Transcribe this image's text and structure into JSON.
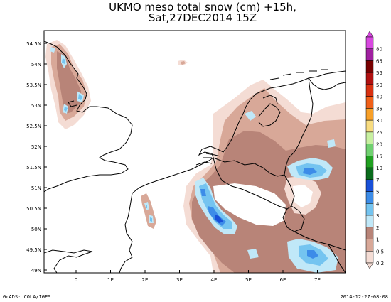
{
  "title": {
    "line1": "UKMO meso total snow (cm) +15h,",
    "line2": "Sat,27DEC2014 15Z"
  },
  "map": {
    "lat_labels": [
      "54.5N",
      "54N",
      "53.5N",
      "53N",
      "52.5N",
      "52N",
      "51.5N",
      "51N",
      "50.5N",
      "50N",
      "49.5N",
      "49N"
    ],
    "lon_labels": [
      "0",
      "1E",
      "2E",
      "3E",
      "4E",
      "5E",
      "6E",
      "7E"
    ],
    "snow_regions": "light-to-heavy snowfall over eastern England (Yorkshire, Lincolnshire), Channel coast near Boulogne, Belgian Ardennes, Luxembourg, Germany (Eifel, Sauerland, Hesse), northern Netherlands and NE France"
  },
  "colorbar": {
    "levels": [
      {
        "label": "80",
        "color": "#d848e0"
      },
      {
        "label": "65",
        "color": "#a020a0"
      },
      {
        "label": "55",
        "color": "#780000"
      },
      {
        "label": "50",
        "color": "#b01010"
      },
      {
        "label": "40",
        "color": "#d83010"
      },
      {
        "label": "35",
        "color": "#f06018"
      },
      {
        "label": "30",
        "color": "#f8a028"
      },
      {
        "label": "25",
        "color": "#f8dc80"
      },
      {
        "label": "20",
        "color": "#c8f0a0"
      },
      {
        "label": "15",
        "color": "#70d070"
      },
      {
        "label": "10",
        "color": "#20a020"
      },
      {
        "label": "7",
        "color": "#0a6c1c"
      },
      {
        "label": "5",
        "color": "#1850d8"
      },
      {
        "label": "4",
        "color": "#3c8ce8"
      },
      {
        "label": "3",
        "color": "#74c4f0"
      },
      {
        "label": "2",
        "color": "#c0e8f8"
      },
      {
        "label": "1",
        "color": "#b88478"
      },
      {
        "label": "0.5",
        "color": "#d8a898"
      },
      {
        "label": "0.2",
        "color": "#f4dcd4"
      }
    ]
  },
  "footer": {
    "left": "GrADS: COLA/IGES",
    "right": "2014-12-27-08:08"
  }
}
